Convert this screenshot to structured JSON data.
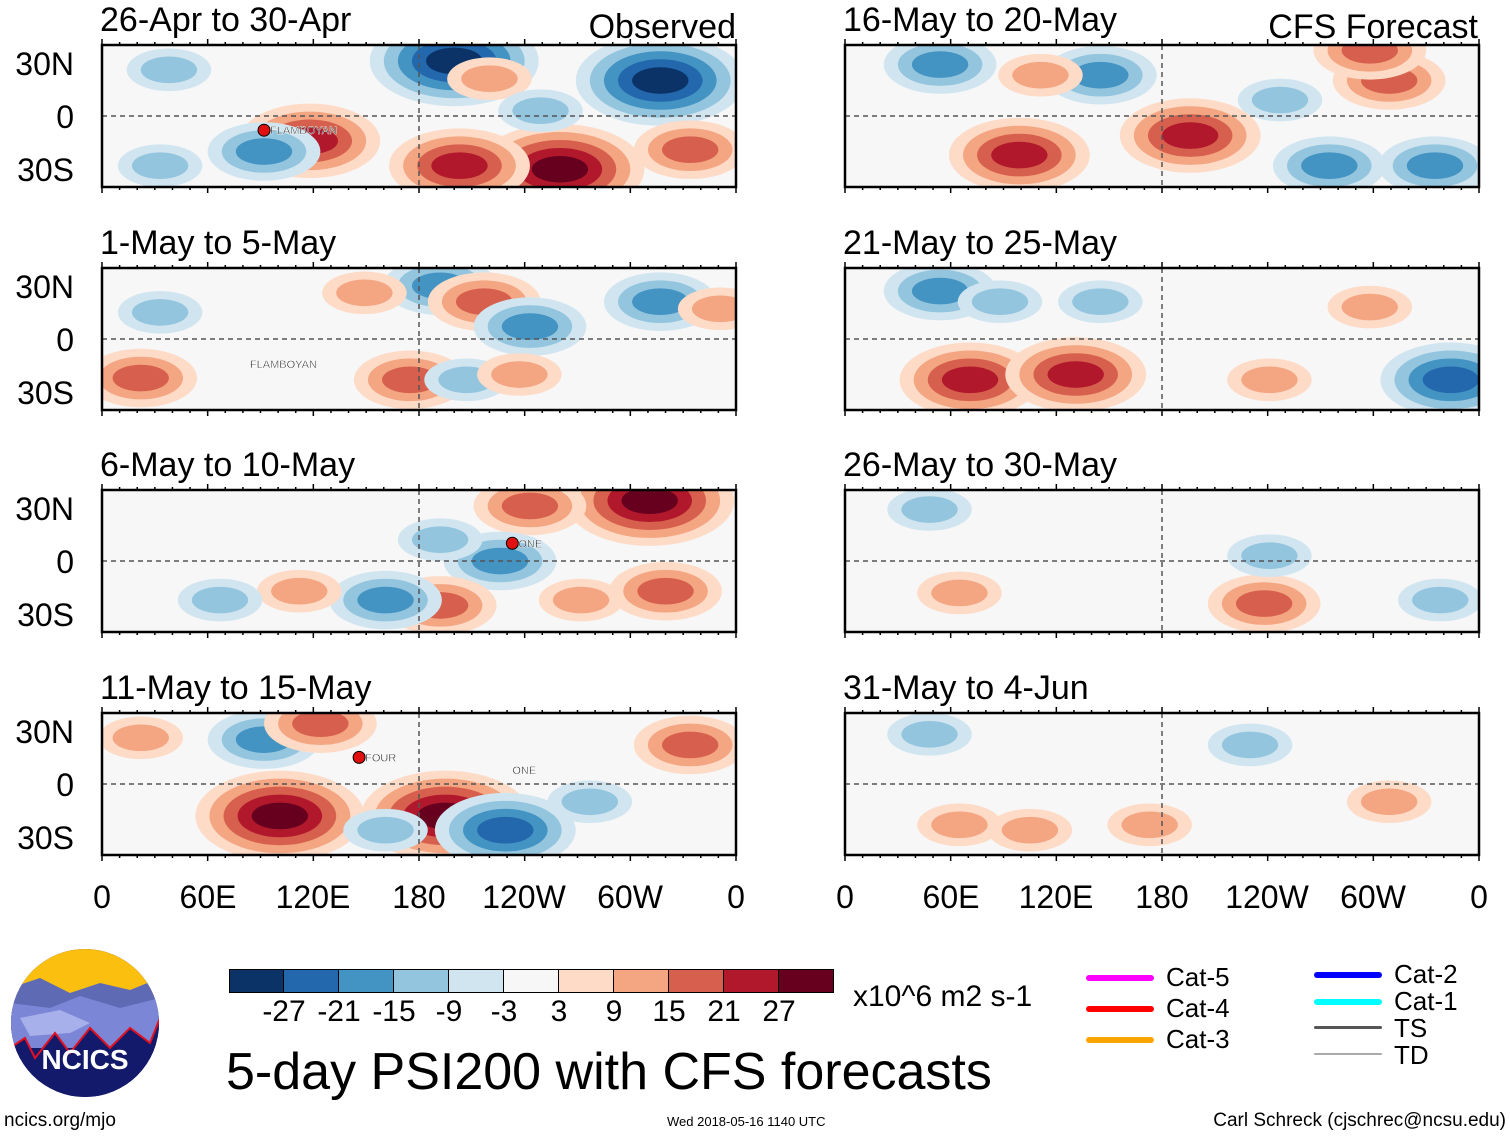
{
  "header": {
    "left_label": "Observed",
    "right_label": "CFS Forecast"
  },
  "lat_labels": [
    "30N",
    "0",
    "30S"
  ],
  "lon_labels": [
    "0",
    "60E",
    "120E",
    "180",
    "120W",
    "60W",
    "0"
  ],
  "panels": [
    {
      "title": "26-Apr to 30-Apr",
      "storms": [
        {
          "name": "FLAMBOYAN",
          "lon": 92,
          "lat": -8,
          "marker": true
        }
      ],
      "anomalies": [
        {
          "lon": 200,
          "lat": 31,
          "v": -27
        },
        {
          "lon": 317,
          "lat": 20,
          "v": -27
        },
        {
          "lon": 260,
          "lat": -30,
          "v": 27
        },
        {
          "lon": 203,
          "lat": -28,
          "v": 21
        },
        {
          "lon": 118,
          "lat": -14,
          "v": 21
        },
        {
          "lon": 92,
          "lat": -20,
          "v": -15
        },
        {
          "lon": 334,
          "lat": -19,
          "v": 15
        },
        {
          "lon": 220,
          "lat": 21,
          "v": 9
        },
        {
          "lon": 38,
          "lat": 26,
          "v": -9
        },
        {
          "lon": 33,
          "lat": -28,
          "v": -9
        },
        {
          "lon": 249,
          "lat": 3,
          "v": -9
        }
      ]
    },
    {
      "title": "1-May to 5-May",
      "storms": [
        {
          "name": "FLAMBOYAN",
          "lon": 84,
          "lat": -14,
          "marker": false
        }
      ],
      "anomalies": [
        {
          "lon": 192,
          "lat": 30,
          "v": -15
        },
        {
          "lon": 217,
          "lat": 21,
          "v": 15
        },
        {
          "lon": 243,
          "lat": 7,
          "v": -15
        },
        {
          "lon": 317,
          "lat": 21,
          "v": -15
        },
        {
          "lon": 33,
          "lat": 15,
          "v": -9
        },
        {
          "lon": 22,
          "lat": -22,
          "v": 15
        },
        {
          "lon": 175,
          "lat": -23,
          "v": 15
        },
        {
          "lon": 207,
          "lat": -23,
          "v": -9
        },
        {
          "lon": 237,
          "lat": -20,
          "v": 9
        },
        {
          "lon": 351,
          "lat": 17,
          "v": 9
        },
        {
          "lon": 149,
          "lat": 26,
          "v": 9
        }
      ]
    },
    {
      "title": "6-May to 10-May",
      "storms": [
        {
          "name": "ONE",
          "lon": 233,
          "lat": 10,
          "marker": true
        }
      ],
      "anomalies": [
        {
          "lon": 311,
          "lat": 34,
          "v": 27
        },
        {
          "lon": 243,
          "lat": 31,
          "v": 15
        },
        {
          "lon": 226,
          "lat": 0,
          "v": -15
        },
        {
          "lon": 192,
          "lat": 12,
          "v": -9
        },
        {
          "lon": 192,
          "lat": -25,
          "v": 15
        },
        {
          "lon": 161,
          "lat": -22,
          "v": -15
        },
        {
          "lon": 320,
          "lat": -17,
          "v": 15
        },
        {
          "lon": 112,
          "lat": -17,
          "v": 9
        },
        {
          "lon": 67,
          "lat": -22,
          "v": -9
        },
        {
          "lon": 272,
          "lat": -22,
          "v": 9
        }
      ]
    },
    {
      "title": "11-May to 15-May",
      "storms": [
        {
          "name": "FOUR",
          "lon": 146,
          "lat": 15,
          "marker": true
        },
        {
          "name": "ONE",
          "lon": 233,
          "lat": 8,
          "marker": false
        }
      ],
      "anomalies": [
        {
          "lon": 92,
          "lat": 25,
          "v": -15
        },
        {
          "lon": 101,
          "lat": -18,
          "v": 27
        },
        {
          "lon": 195,
          "lat": -18,
          "v": 27
        },
        {
          "lon": 229,
          "lat": -26,
          "v": -21
        },
        {
          "lon": 334,
          "lat": 22,
          "v": 15
        },
        {
          "lon": 124,
          "lat": 34,
          "v": 15
        },
        {
          "lon": 277,
          "lat": -10,
          "v": -9
        },
        {
          "lon": 161,
          "lat": -26,
          "v": -9
        },
        {
          "lon": 22,
          "lat": 26,
          "v": 9
        }
      ]
    },
    {
      "title": "16-May to 20-May",
      "storms": [],
      "anomalies": [
        {
          "lon": 99,
          "lat": -22,
          "v": 21
        },
        {
          "lon": 196,
          "lat": -11,
          "v": 21
        },
        {
          "lon": 145,
          "lat": 23,
          "v": -15
        },
        {
          "lon": 275,
          "lat": -28,
          "v": -15
        },
        {
          "lon": 335,
          "lat": -28,
          "v": -15
        },
        {
          "lon": 309,
          "lat": 20,
          "v": 15
        },
        {
          "lon": 54,
          "lat": 29,
          "v": -15
        },
        {
          "lon": 111,
          "lat": 23,
          "v": 9
        },
        {
          "lon": 298,
          "lat": 37,
          "v": 15
        },
        {
          "lon": 247,
          "lat": 9,
          "v": -9
        }
      ]
    },
    {
      "title": "21-May to 25-May",
      "storms": [],
      "anomalies": [
        {
          "lon": 71,
          "lat": -23,
          "v": 21
        },
        {
          "lon": 131,
          "lat": -20,
          "v": 21
        },
        {
          "lon": 54,
          "lat": 27,
          "v": -15
        },
        {
          "lon": 344,
          "lat": -23,
          "v": -21
        },
        {
          "lon": 241,
          "lat": -23,
          "v": 9
        },
        {
          "lon": 88,
          "lat": 21,
          "v": -9
        },
        {
          "lon": 145,
          "lat": 21,
          "v": -9
        },
        {
          "lon": 298,
          "lat": 18,
          "v": 9
        }
      ]
    },
    {
      "title": "26-May to 30-May",
      "storms": [],
      "anomalies": [
        {
          "lon": 238,
          "lat": -24,
          "v": 15
        },
        {
          "lon": 48,
          "lat": 29,
          "v": -9
        },
        {
          "lon": 65,
          "lat": -18,
          "v": 9
        },
        {
          "lon": 241,
          "lat": 3,
          "v": -9
        },
        {
          "lon": 338,
          "lat": -22,
          "v": -9
        }
      ]
    },
    {
      "title": "31-May to 4-Jun",
      "storms": [],
      "anomalies": [
        {
          "lon": 230,
          "lat": 22,
          "v": -9
        },
        {
          "lon": 105,
          "lat": -26,
          "v": 9
        },
        {
          "lon": 309,
          "lat": -10,
          "v": 9
        },
        {
          "lon": 173,
          "lat": -23,
          "v": 9
        },
        {
          "lon": 48,
          "lat": 28,
          "v": -9
        },
        {
          "lon": 65,
          "lat": -23,
          "v": 9
        }
      ]
    }
  ],
  "colorbar": {
    "labels": [
      "-27",
      "-21",
      "-15",
      "-9",
      "-3",
      "3",
      "9",
      "15",
      "21",
      "27"
    ],
    "colors": [
      "#0b3367",
      "#2367ad",
      "#4393c3",
      "#93c5de",
      "#d1e5f0",
      "#f7f7f7",
      "#fddbc7",
      "#f4a582",
      "#d6604d",
      "#b2182b",
      "#67001f"
    ],
    "units": "x10^6 m2 s-1"
  },
  "legend": [
    {
      "label": "Cat-5",
      "color": "#ff00ff"
    },
    {
      "label": "Cat-4",
      "color": "#ff0000"
    },
    {
      "label": "Cat-3",
      "color": "#ffa500"
    },
    {
      "label": "Cat-2",
      "color": "#0000ff"
    },
    {
      "label": "Cat-1",
      "color": "#00ffff"
    },
    {
      "label": "TS",
      "color": "#555555"
    },
    {
      "label": "TD",
      "color": "#aaaaaa"
    }
  ],
  "title": "5-day PSI200 with CFS forecasts",
  "logo_text": "NCICS",
  "footer": {
    "left": "ncics.org/mjo",
    "center": "Wed 2018-05-16 1140 UTC",
    "right": "Carl Schreck (cjschrec@ncsu.edu)"
  }
}
